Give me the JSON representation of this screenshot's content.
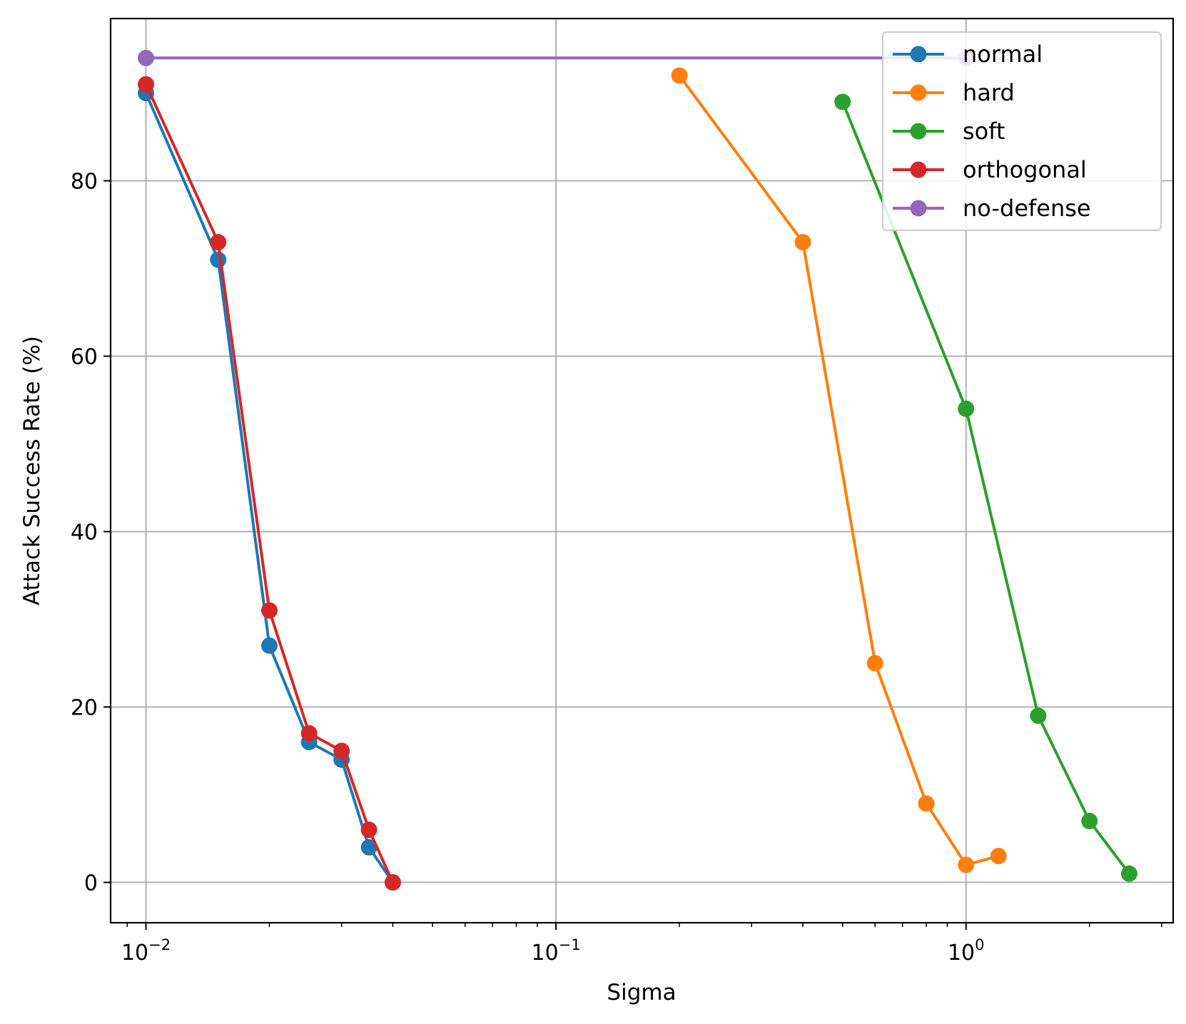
{
  "chart_data": {
    "type": "line",
    "xlabel": "Sigma",
    "ylabel": "Attack Success Rate (%)",
    "xscale": "log",
    "xlim": [
      0.0082,
      3.2
    ],
    "ylim": [
      -4.6,
      98.5
    ],
    "grid": true,
    "legend_position": "top-right",
    "yticks": [
      {
        "value": 0,
        "label": "0"
      },
      {
        "value": 20,
        "label": "20"
      },
      {
        "value": 40,
        "label": "40"
      },
      {
        "value": 60,
        "label": "60"
      },
      {
        "value": 80,
        "label": "80"
      }
    ],
    "xticks": [
      {
        "value": 0.01,
        "base": "10",
        "exp": "−2"
      },
      {
        "value": 0.1,
        "base": "10",
        "exp": "−1"
      },
      {
        "value": 1,
        "base": "10",
        "exp": "0"
      }
    ],
    "series": [
      {
        "name": "normal",
        "color": "#1f77b4",
        "x": [
          0.01,
          0.015,
          0.02,
          0.025,
          0.03,
          0.035,
          0.04
        ],
        "y": [
          90,
          71,
          27,
          16,
          14,
          4,
          0
        ]
      },
      {
        "name": "hard",
        "color": "#ff7f0e",
        "x": [
          0.2,
          0.4,
          0.6,
          0.8,
          1.0,
          1.2
        ],
        "y": [
          92,
          73,
          25,
          9,
          2,
          3
        ]
      },
      {
        "name": "soft",
        "color": "#2ca02c",
        "x": [
          0.5,
          1.0,
          1.5,
          2.0,
          2.5
        ],
        "y": [
          89,
          54,
          19,
          7,
          1
        ]
      },
      {
        "name": "orthogonal",
        "color": "#d62728",
        "x": [
          0.01,
          0.015,
          0.02,
          0.025,
          0.03,
          0.035,
          0.04
        ],
        "y": [
          91,
          73,
          31,
          17,
          15,
          6,
          0
        ]
      },
      {
        "name": "no-defense",
        "color": "#9467bd",
        "x": [
          0.01,
          1.0
        ],
        "y": [
          94,
          94
        ]
      }
    ]
  }
}
